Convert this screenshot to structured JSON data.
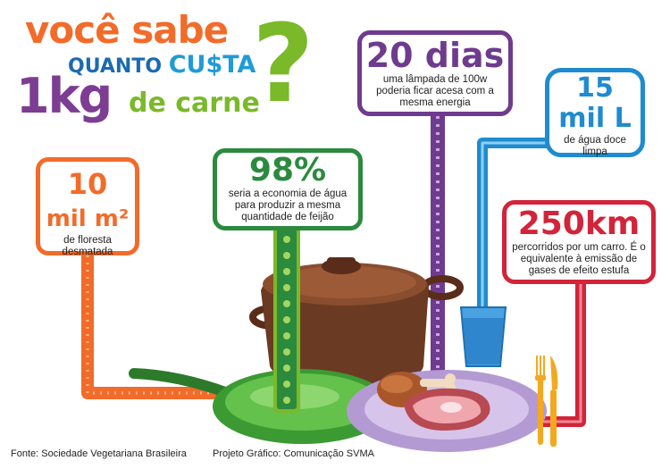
{
  "title": {
    "line1": "você sabe",
    "line2_a": "QUANTO ",
    "line2_b": "CU$TA",
    "line3_a": "1kg",
    "line3_b": "de carne",
    "qmark": "?"
  },
  "facts": {
    "forest": {
      "value": "10",
      "unit": "mil m²",
      "text": "de floresta desmatada",
      "color": "#f26b2a"
    },
    "water_saving": {
      "value": "98%",
      "text": "seria a economia de água para produzir a mesma quantidade de feijão",
      "color": "#2b8a3e"
    },
    "lamp": {
      "value": "20 dias",
      "text": "uma lâmpada de 100w poderia ficar acesa com a mesma energia",
      "color": "#6e3b8e"
    },
    "water": {
      "value": "15",
      "unit": "mil L",
      "text": "de água doce limpa",
      "color": "#1f8bd0"
    },
    "car": {
      "value": "250km",
      "text": "percorridos por um carro. É o equivalente à emissão de gases de efeito estufa",
      "color": "#d2243a"
    }
  },
  "footer": {
    "source": "Fonte: Sociedade Vegetariana Brasileira",
    "credit": "Projeto Gráfico: Comunicação SVMA"
  }
}
